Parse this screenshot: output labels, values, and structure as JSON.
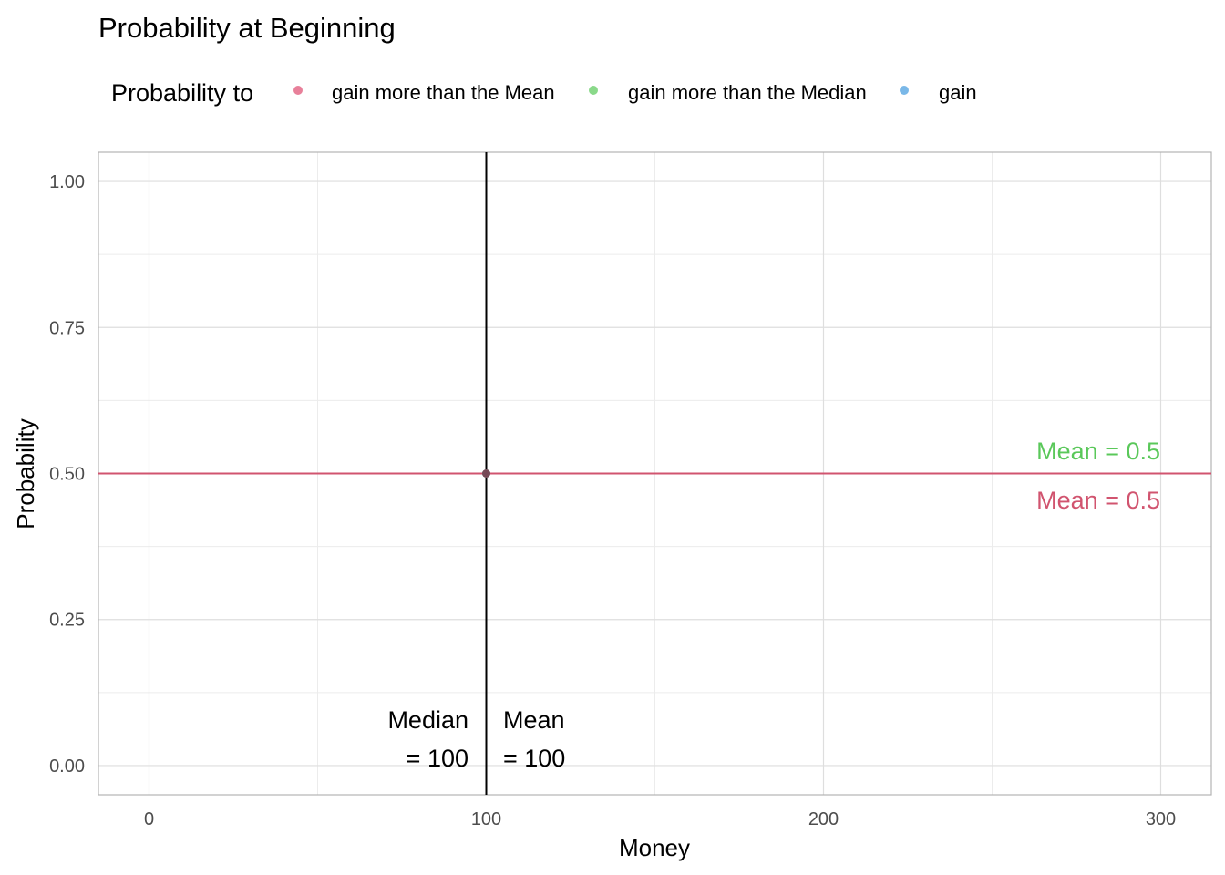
{
  "chart_data": {
    "type": "scatter",
    "title": "Probability at Beginning",
    "xlabel": "Money",
    "ylabel": "Probability",
    "xlim": [
      -15,
      315
    ],
    "ylim": [
      -0.05,
      1.05
    ],
    "x_ticks": [
      0,
      100,
      200,
      300
    ],
    "y_ticks": [
      0.0,
      0.25,
      0.5,
      0.75,
      1.0
    ],
    "x_tick_labels": [
      "0",
      "100",
      "200",
      "300"
    ],
    "y_tick_labels": [
      "0.00",
      "0.25",
      "0.50",
      "0.75",
      "1.00"
    ],
    "grid": true,
    "legend": {
      "position": "top-left",
      "title": "Probability to",
      "entries": [
        {
          "label": "gain more than the Mean",
          "color": "#e8809a"
        },
        {
          "label": "gain more than the Median",
          "color": "#8ad98a"
        },
        {
          "label": "gain",
          "color": "#7ab8e8"
        }
      ]
    },
    "series": [
      {
        "name": "gain more than the Mean",
        "color": "#d1546f",
        "points": [
          {
            "x": 100,
            "y": 0.5
          }
        ]
      },
      {
        "name": "gain more than the Median",
        "color": "#57c957",
        "points": [
          {
            "x": 100,
            "y": 0.5
          }
        ]
      },
      {
        "name": "gain",
        "color": "#5aa6e0",
        "points": [
          {
            "x": 100,
            "y": 0.5
          }
        ]
      }
    ],
    "reference_lines": {
      "horizontal": {
        "y": 0.5,
        "color": "#d1546f"
      },
      "vertical": {
        "x": 100,
        "color": "#000000"
      }
    },
    "annotations": {
      "mean_green": {
        "text": "Mean = 0.5",
        "color": "#5ac85a"
      },
      "mean_red": {
        "text": "Mean = 0.5",
        "color": "#d1546f"
      },
      "median_line1": "Median",
      "median_line2": "= 100",
      "mean_line1": "Mean",
      "mean_line2": "= 100"
    }
  }
}
